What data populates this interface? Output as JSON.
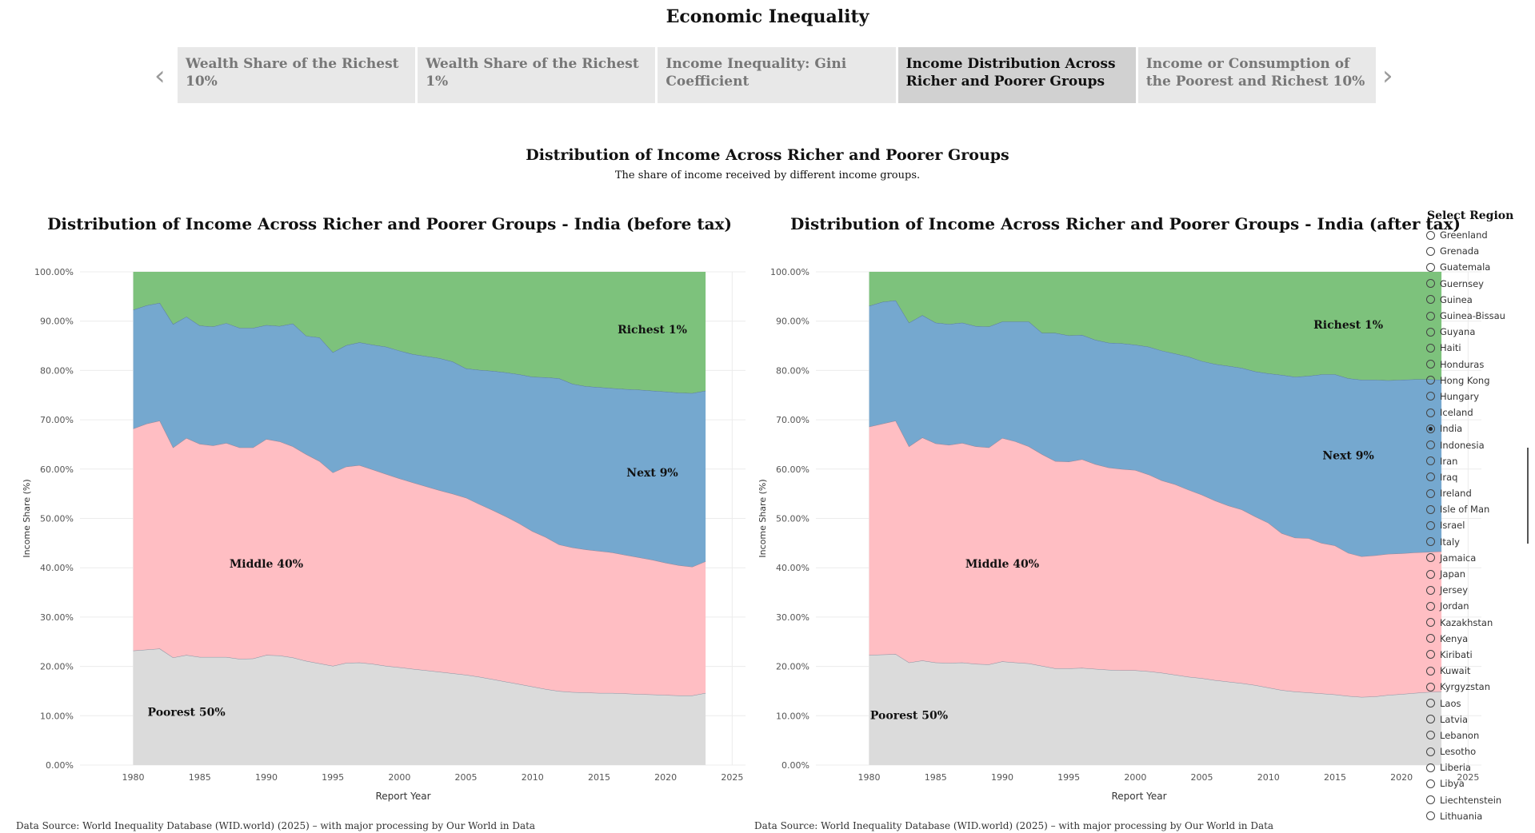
{
  "dashboard": {
    "title": "Economic Inequality",
    "tabs": [
      {
        "label": "Wealth Share of the Richest 10%",
        "active": false
      },
      {
        "label": "Wealth Share of the Richest 1%",
        "active": false
      },
      {
        "label": "Income Inequality: Gini Coefficient",
        "active": false
      },
      {
        "label": "Income Distribution Across Richer and Poorer Groups",
        "active": true
      },
      {
        "label": "Income or Consumption of the Poorest and Richest 10%",
        "active": false
      }
    ],
    "prev_icon": "chevron-left-icon",
    "next_icon": "chevron-right-icon"
  },
  "section": {
    "title": "Distribution of Income Across Richer and Poorer Groups",
    "subtitle": "The share of income received by different income groups."
  },
  "region_selector": {
    "title": "Select Region",
    "selected": "India",
    "items": [
      "Greenland",
      "Grenada",
      "Guatemala",
      "Guernsey",
      "Guinea",
      "Guinea-Bissau",
      "Guyana",
      "Haiti",
      "Honduras",
      "Hong Kong",
      "Hungary",
      "Iceland",
      "India",
      "Indonesia",
      "Iran",
      "Iraq",
      "Ireland",
      "Isle of Man",
      "Israel",
      "Italy",
      "Jamaica",
      "Japan",
      "Jersey",
      "Jordan",
      "Kazakhstan",
      "Kenya",
      "Kiribati",
      "Kuwait",
      "Kyrgyzstan",
      "Laos",
      "Latvia",
      "Lebanon",
      "Lesotho",
      "Liberia",
      "Libya",
      "Liechtenstein",
      "Lithuania"
    ]
  },
  "colors": {
    "poorest_50": "#dbdbdb",
    "middle_40": "#ffbec3",
    "next_9": "#75a8cf",
    "richest_1": "#7dc27c"
  },
  "chart_data": [
    {
      "type": "area",
      "title": "Distribution of Income Across Richer and Poorer Groups - India (before tax)",
      "xlabel": "Report Year",
      "ylabel": "Income Share (%)",
      "xlim": [
        1976,
        2026
      ],
      "ylim": [
        0,
        100
      ],
      "xticks": [
        "1980",
        "1985",
        "1990",
        "1995",
        "2000",
        "2005",
        "2010",
        "2015",
        "2020",
        "2025"
      ],
      "yticks": [
        "0.00%",
        "10.00%",
        "20.00%",
        "30.00%",
        "40.00%",
        "50.00%",
        "60.00%",
        "70.00%",
        "80.00%",
        "90.00%",
        "100.00%"
      ],
      "grid": true,
      "stacked": true,
      "series_labels_inside": true,
      "source": "Data Source: World Inequality Database (WID.world) (2025) – with major processing by Our World in Data",
      "x": [
        1980,
        1981,
        1982,
        1983,
        1984,
        1985,
        1986,
        1987,
        1988,
        1989,
        1990,
        1991,
        1992,
        1993,
        1994,
        1995,
        1996,
        1997,
        1998,
        1999,
        2000,
        2001,
        2002,
        2003,
        2004,
        2005,
        2006,
        2007,
        2008,
        2009,
        2010,
        2011,
        2012,
        2013,
        2014,
        2015,
        2016,
        2017,
        2018,
        2019,
        2020,
        2021,
        2022,
        2023
      ],
      "series": [
        {
          "name": "Poorest 50%",
          "label_at": [
            1984,
            10
          ],
          "values": [
            23.2,
            23.4,
            23.6,
            21.8,
            22.3,
            21.9,
            21.9,
            21.9,
            21.5,
            21.6,
            22.3,
            22.2,
            21.8,
            21.1,
            20.6,
            20.1,
            20.7,
            20.8,
            20.5,
            20.1,
            19.8,
            19.5,
            19.2,
            18.9,
            18.6,
            18.3,
            17.9,
            17.4,
            16.9,
            16.4,
            15.9,
            15.4,
            15.0,
            14.8,
            14.7,
            14.6,
            14.6,
            14.5,
            14.4,
            14.3,
            14.2,
            14.1,
            14.1,
            14.6
          ]
        },
        {
          "name": "Middle 40%",
          "label_at": [
            1990,
            40
          ],
          "values": [
            45.0,
            45.8,
            46.2,
            42.6,
            44.0,
            43.2,
            42.9,
            43.4,
            42.9,
            42.8,
            43.8,
            43.4,
            42.8,
            41.9,
            41.0,
            39.2,
            39.8,
            40.0,
            39.4,
            38.9,
            38.3,
            37.8,
            37.3,
            36.8,
            36.4,
            35.9,
            35.0,
            34.3,
            33.5,
            32.6,
            31.5,
            30.8,
            29.7,
            29.3,
            29.0,
            28.8,
            28.5,
            28.1,
            27.7,
            27.3,
            26.8,
            26.4,
            26.1,
            26.7
          ]
        },
        {
          "name": "Next 9%",
          "label_at": [
            2019,
            58.5
          ],
          "values": [
            24.1,
            24.0,
            23.9,
            25.0,
            24.6,
            24.0,
            24.1,
            24.3,
            24.2,
            24.2,
            23.1,
            23.4,
            24.9,
            24.0,
            25.1,
            24.4,
            24.6,
            24.9,
            25.3,
            25.8,
            25.9,
            26.0,
            26.4,
            26.8,
            26.8,
            26.2,
            27.2,
            28.2,
            29.2,
            30.2,
            31.3,
            32.4,
            33.7,
            33.2,
            33.1,
            33.2,
            33.3,
            33.6,
            34.0,
            34.3,
            34.7,
            35.0,
            35.2,
            34.6
          ]
        },
        {
          "name": "Richest 1%",
          "label_at": [
            2019,
            87.5
          ],
          "values": [
            7.7,
            6.8,
            6.3,
            10.6,
            9.1,
            10.9,
            11.1,
            10.4,
            11.4,
            11.4,
            10.8,
            11.0,
            10.5,
            13.0,
            13.3,
            16.3,
            14.9,
            14.3,
            14.8,
            15.2,
            16.0,
            16.7,
            17.1,
            17.5,
            18.2,
            19.6,
            19.9,
            20.1,
            20.4,
            20.8,
            21.3,
            21.4,
            21.6,
            22.7,
            23.2,
            23.4,
            23.6,
            23.8,
            23.9,
            24.1,
            24.3,
            24.5,
            24.6,
            24.1
          ]
        }
      ]
    },
    {
      "type": "area",
      "title": "Distribution of Income Across Richer and Poorer Groups - India (after tax)",
      "xlabel": "Report Year",
      "ylabel": "Income Share (%)",
      "xlim": [
        1976,
        2026
      ],
      "ylim": [
        0,
        100
      ],
      "xticks": [
        "1980",
        "1985",
        "1990",
        "1995",
        "2000",
        "2005",
        "2010",
        "2015",
        "2020",
        "2025"
      ],
      "yticks": [
        "0.00%",
        "10.00%",
        "20.00%",
        "30.00%",
        "40.00%",
        "50.00%",
        "60.00%",
        "70.00%",
        "80.00%",
        "90.00%",
        "100.00%"
      ],
      "grid": true,
      "stacked": true,
      "series_labels_inside": true,
      "source": "Data Source: World Inequality Database (WID.world) (2025) – with major processing by Our World in Data",
      "x": [
        1980,
        1981,
        1982,
        1983,
        1984,
        1985,
        1986,
        1987,
        1988,
        1989,
        1990,
        1991,
        1992,
        1993,
        1994,
        1995,
        1996,
        1997,
        1998,
        1999,
        2000,
        2001,
        2002,
        2003,
        2004,
        2005,
        2006,
        2007,
        2008,
        2009,
        2010,
        2011,
        2012,
        2013,
        2014,
        2015,
        2016,
        2017,
        2018,
        2019,
        2020,
        2021,
        2022,
        2023
      ],
      "series": [
        {
          "name": "Poorest 50%",
          "label_at": [
            1983,
            9.3
          ],
          "values": [
            22.3,
            22.4,
            22.5,
            20.8,
            21.2,
            20.8,
            20.7,
            20.8,
            20.5,
            20.4,
            21.0,
            20.8,
            20.6,
            20.1,
            19.6,
            19.6,
            19.7,
            19.5,
            19.3,
            19.2,
            19.2,
            19.0,
            18.7,
            18.3,
            17.9,
            17.6,
            17.2,
            16.9,
            16.6,
            16.2,
            15.7,
            15.2,
            14.9,
            14.7,
            14.5,
            14.3,
            14.0,
            13.8,
            13.9,
            14.2,
            14.4,
            14.6,
            14.8,
            14.9
          ]
        },
        {
          "name": "Middle 40%",
          "label_at": [
            1990,
            40
          ],
          "values": [
            46.3,
            46.8,
            47.3,
            43.8,
            45.2,
            44.4,
            44.2,
            44.5,
            44.1,
            44.0,
            45.3,
            44.8,
            44.0,
            42.9,
            42.0,
            41.9,
            42.3,
            41.5,
            41.0,
            40.8,
            40.6,
            39.9,
            39.0,
            38.6,
            37.9,
            37.2,
            36.4,
            35.7,
            35.2,
            34.2,
            33.4,
            31.8,
            31.2,
            31.3,
            30.5,
            30.2,
            29.0,
            28.5,
            28.6,
            28.6,
            28.5,
            28.5,
            28.4,
            28.4
          ]
        },
        {
          "name": "Next 9%",
          "label_at": [
            2016,
            62
          ],
          "values": [
            24.5,
            24.7,
            24.4,
            25.1,
            24.8,
            24.5,
            24.5,
            24.4,
            24.4,
            24.5,
            23.6,
            24.3,
            25.3,
            24.6,
            26.0,
            25.6,
            25.2,
            25.2,
            25.3,
            25.5,
            25.4,
            25.9,
            26.3,
            26.5,
            27.0,
            27.1,
            27.7,
            28.3,
            28.7,
            29.4,
            30.3,
            32.1,
            32.6,
            32.9,
            34.2,
            34.7,
            35.4,
            35.8,
            35.6,
            35.2,
            35.2,
            35.1,
            35.0,
            34.8
          ]
        },
        {
          "name": "Richest 1%",
          "label_at": [
            2016,
            88.5
          ],
          "values": [
            6.9,
            6.1,
            5.8,
            10.3,
            8.8,
            10.3,
            10.6,
            10.3,
            11.0,
            11.1,
            10.1,
            10.1,
            10.1,
            12.4,
            12.4,
            12.9,
            12.8,
            13.8,
            14.4,
            14.5,
            14.8,
            15.2,
            16.0,
            16.6,
            17.2,
            18.1,
            18.7,
            19.1,
            19.5,
            20.2,
            20.6,
            20.9,
            21.3,
            21.1,
            20.8,
            20.8,
            21.6,
            21.9,
            21.9,
            22.0,
            21.9,
            21.8,
            21.8,
            21.9
          ]
        }
      ]
    }
  ]
}
